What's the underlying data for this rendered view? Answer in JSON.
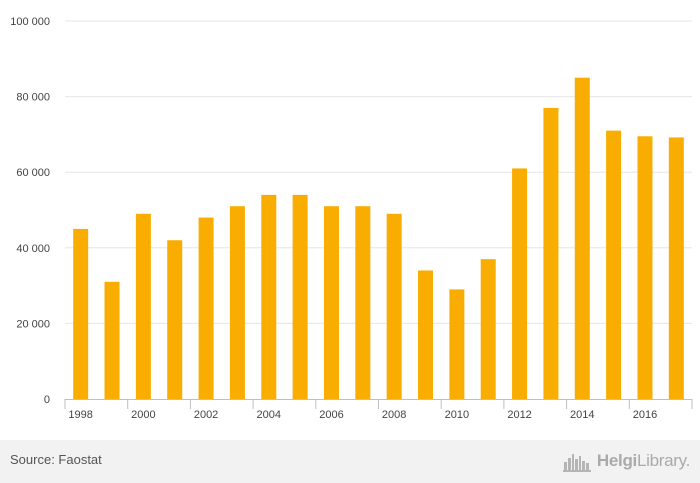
{
  "chart_data": {
    "type": "bar",
    "x": [
      1998,
      1999,
      2000,
      2001,
      2002,
      2003,
      2004,
      2005,
      2006,
      2007,
      2008,
      2009,
      2010,
      2011,
      2012,
      2013,
      2014,
      2015,
      2016,
      2017
    ],
    "values": [
      45000,
      31000,
      49000,
      42000,
      48000,
      51000,
      54000,
      54000,
      51000,
      51000,
      49000,
      34000,
      29000,
      37000,
      61000,
      77000,
      85000,
      71000,
      69500,
      69200
    ],
    "x_tick_labels": [
      "1998",
      "2000",
      "2002",
      "2004",
      "2006",
      "2008",
      "2010",
      "2012",
      "2014",
      "2016"
    ],
    "y_ticks": [
      0,
      20000,
      40000,
      60000,
      80000,
      100000
    ],
    "y_tick_labels": [
      "0",
      "20 000",
      "40 000",
      "60 000",
      "80 000",
      "100 000"
    ],
    "ylim": [
      0,
      100000
    ],
    "grid": true,
    "bar_color": "#f9ad00",
    "title": "",
    "xlabel": "",
    "ylabel": ""
  },
  "footer": {
    "source": "Source: Faostat",
    "logo_bold": "Helgi",
    "logo_light": "Library."
  }
}
